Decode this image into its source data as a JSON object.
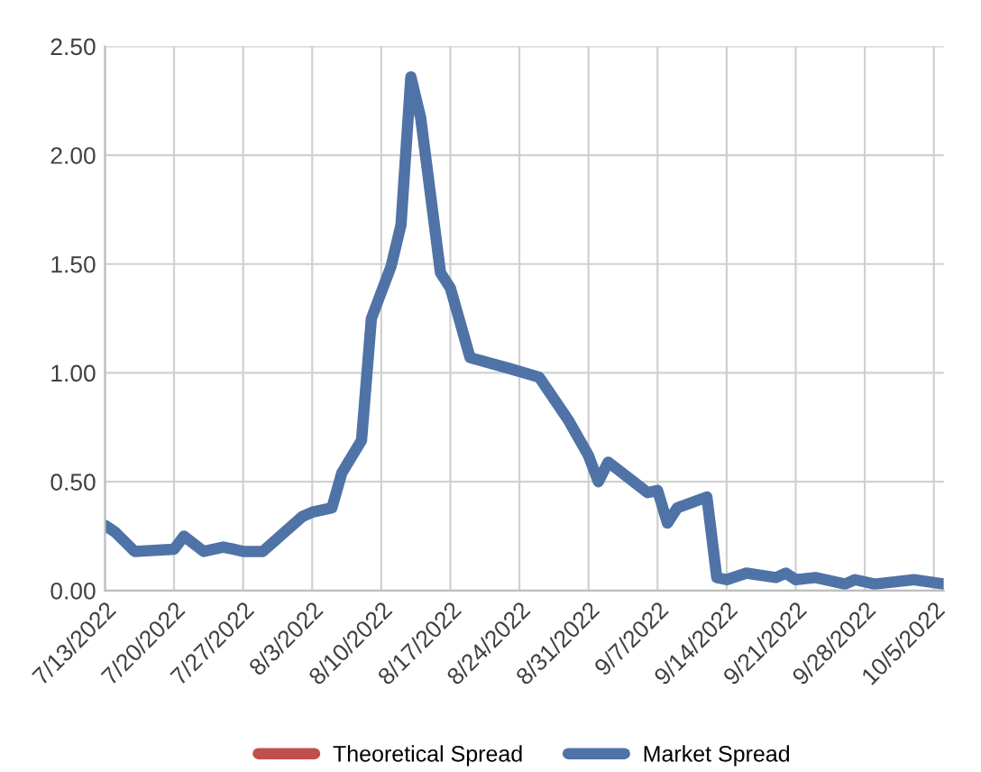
{
  "chart_data": {
    "type": "line",
    "x": [
      "2022-07-13",
      "2022-07-14",
      "2022-07-16",
      "2022-07-20",
      "2022-07-21",
      "2022-07-23",
      "2022-07-25",
      "2022-07-26",
      "2022-07-27",
      "2022-07-29",
      "2022-08-02",
      "2022-08-03",
      "2022-08-05",
      "2022-08-06",
      "2022-08-08",
      "2022-08-09",
      "2022-08-11",
      "2022-08-12",
      "2022-08-13",
      "2022-08-14",
      "2022-08-16",
      "2022-08-17",
      "2022-08-19",
      "2022-08-23",
      "2022-08-26",
      "2022-08-29",
      "2022-08-31",
      "2022-09-01",
      "2022-09-02",
      "2022-09-06",
      "2022-09-07",
      "2022-09-08",
      "2022-09-09",
      "2022-09-12",
      "2022-09-13",
      "2022-09-14",
      "2022-09-16",
      "2022-09-19",
      "2022-09-20",
      "2022-09-21",
      "2022-09-23",
      "2022-09-26",
      "2022-09-27",
      "2022-09-29",
      "2022-10-03",
      "2022-10-06"
    ],
    "series": [
      {
        "name": "Theoretical Spread",
        "color": "#c0504d",
        "values": [
          null,
          null,
          null,
          null,
          null,
          null,
          null,
          null,
          null,
          null,
          null,
          null,
          null,
          null,
          null,
          null,
          null,
          null,
          null,
          null,
          null,
          null,
          null,
          null,
          null,
          null,
          null,
          null,
          null,
          null,
          null,
          null,
          null,
          null,
          null,
          null,
          null,
          null,
          null,
          null,
          null,
          null,
          null,
          null,
          null,
          null
        ]
      },
      {
        "name": "Market Spread",
        "color": "#4f73a6",
        "values": [
          0.3,
          0.27,
          0.18,
          0.19,
          0.25,
          0.18,
          0.2,
          0.19,
          0.18,
          0.18,
          0.34,
          0.36,
          0.38,
          0.54,
          0.69,
          1.25,
          1.49,
          1.68,
          2.36,
          2.17,
          1.46,
          1.39,
          1.07,
          1.02,
          0.98,
          0.78,
          0.62,
          0.5,
          0.59,
          0.45,
          0.46,
          0.31,
          0.38,
          0.43,
          0.06,
          0.05,
          0.08,
          0.06,
          0.08,
          0.05,
          0.06,
          0.03,
          0.05,
          0.03,
          0.05,
          0.03
        ]
      }
    ],
    "xlim": [
      "2022-07-13",
      "2022-10-06"
    ],
    "xticks": [
      {
        "value": "2022-07-13",
        "label": "7/13/2022"
      },
      {
        "value": "2022-07-20",
        "label": "7/20/2022"
      },
      {
        "value": "2022-07-27",
        "label": "7/27/2022"
      },
      {
        "value": "2022-08-03",
        "label": "8/3/2022"
      },
      {
        "value": "2022-08-10",
        "label": "8/10/2022"
      },
      {
        "value": "2022-08-17",
        "label": "8/17/2022"
      },
      {
        "value": "2022-08-24",
        "label": "8/24/2022"
      },
      {
        "value": "2022-08-31",
        "label": "8/31/2022"
      },
      {
        "value": "2022-09-07",
        "label": "9/7/2022"
      },
      {
        "value": "2022-09-14",
        "label": "9/14/2022"
      },
      {
        "value": "2022-09-21",
        "label": "9/21/2022"
      },
      {
        "value": "2022-09-28",
        "label": "9/28/2022"
      },
      {
        "value": "2022-10-05",
        "label": "10/5/2022"
      }
    ],
    "ylim": [
      0,
      2.5
    ],
    "yticks": [
      {
        "value": 0,
        "label": "0.00"
      },
      {
        "value": 0.5,
        "label": "0.50"
      },
      {
        "value": 1,
        "label": "1.00"
      },
      {
        "value": 1.5,
        "label": "1.50"
      },
      {
        "value": 2,
        "label": "2.00"
      },
      {
        "value": 2.5,
        "label": "2.50"
      }
    ],
    "grid": true,
    "legend": "bottom",
    "marker": "none",
    "line_style": "solid"
  }
}
